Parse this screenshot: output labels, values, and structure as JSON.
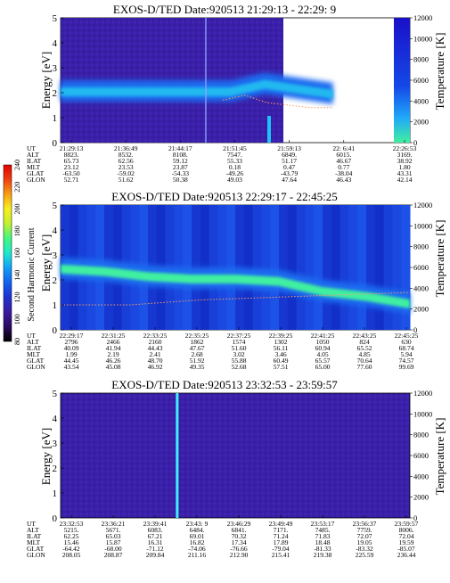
{
  "chart_data": [
    {
      "type": "heatmap",
      "title": "EXOS-D/TED   Date:920513  21:29:13 - 22:29: 9",
      "ylabel": "Energy [eV]",
      "right_label": "Temperature [K]",
      "ylim": [
        0,
        5
      ],
      "yticks": [
        "0",
        "1",
        "2",
        "3",
        "4",
        "5"
      ],
      "right_ticks": [
        "0",
        "2000",
        "4000",
        "6000",
        "8000",
        "10000",
        "12000"
      ],
      "data_end_fraction": 0.78,
      "resume_start_fraction": 0.955,
      "band_energy": [
        2.0,
        2.0,
        2.0,
        2.0,
        2.0,
        2.0,
        2.3,
        2.1,
        1.9
      ],
      "temperature_trace": [
        1.7,
        1.9,
        1.6,
        1.5,
        1.4,
        1.4
      ],
      "table": {
        "row_labels": [
          "UT",
          "ALT",
          "ILAT",
          "MLT",
          "GLAT",
          "GLON"
        ],
        "columns": [
          [
            "21:29:13",
            "8823.",
            "65.73",
            "23.12",
            "-63.50",
            "52.71"
          ],
          [
            "21:36:49",
            "8532.",
            "62.56",
            "23.53",
            "-59.02",
            "51.62"
          ],
          [
            "21:44:17",
            "8108.",
            "59.12",
            "23.87",
            "-54.33",
            "50.38"
          ],
          [
            "21:51:45",
            "7547.",
            "55.33",
            "0.18",
            "-49.26",
            "49.03"
          ],
          [
            "21:59:13",
            "6849.",
            "51.17",
            "0.47",
            "-43.79",
            "47.64"
          ],
          [
            "22: 6:41",
            "6015.",
            "46.67",
            "0.77",
            "-38.04",
            "46.43"
          ],
          [
            "22:26:53",
            "3169.",
            "38.92",
            "1.80",
            "43.31",
            "42.14"
          ]
        ]
      }
    },
    {
      "type": "heatmap",
      "title": "EXOS-D/TED   Date:920513  22:29:17 - 22:45:25",
      "ylabel": "Energy [eV]",
      "right_label": "Temperature [K]",
      "ylim": [
        0,
        5
      ],
      "yticks": [
        "0",
        "1",
        "2",
        "3",
        "4",
        "5"
      ],
      "right_ticks": [
        "0",
        "2000",
        "4000",
        "6000",
        "8000",
        "10000",
        "12000"
      ],
      "band_energy": [
        2.4,
        2.3,
        2.1,
        2.0,
        2.0,
        1.9,
        1.5,
        1.3,
        1.0
      ],
      "temperature_trace": [
        1.0,
        1.0,
        1.2,
        1.3,
        1.4,
        1.5
      ],
      "table": {
        "row_labels": [
          "UT",
          "ALT",
          "ILAT",
          "MLT",
          "GLAT",
          "GLON"
        ],
        "columns": [
          [
            "22:29:17",
            "2796",
            "40.09",
            "1.99",
            "44.45",
            "43.54"
          ],
          [
            "22:31:25",
            "2466",
            "41.94",
            "2.19",
            "46.26",
            "45.08"
          ],
          [
            "22:33:25",
            "2160",
            "44.43",
            "2.41",
            "48.70",
            "46.92"
          ],
          [
            "22:35:25",
            "1862",
            "47.67",
            "2.68",
            "51.92",
            "49.35"
          ],
          [
            "22:37:25",
            "1574",
            "51.60",
            "3.02",
            "55.88",
            "52.68"
          ],
          [
            "22:39:25",
            "1302",
            "56.11",
            "3.46",
            "60.49",
            "57.51"
          ],
          [
            "22:41:25",
            "1050",
            "60.94",
            "4.05",
            "65.57",
            "65.00"
          ],
          [
            "22:43:25",
            "824",
            "65.52",
            "4.85",
            "70.64",
            "77.60"
          ],
          [
            "22:45:25",
            "630",
            "68.74",
            "5.94",
            "74.57",
            "99.69"
          ]
        ]
      }
    },
    {
      "type": "heatmap",
      "title": "EXOS-D/TED   Date:920513  23:32:53 - 23:59:57",
      "ylabel": "Energy [eV]",
      "right_label": "Temperature [K]",
      "ylim": [
        0,
        5
      ],
      "yticks": [
        "0",
        "1",
        "2",
        "3",
        "4",
        "5"
      ],
      "right_ticks": [
        "0",
        "2000",
        "4000",
        "6000",
        "8000",
        "10000",
        "12000"
      ],
      "spike_fraction": 0.33,
      "table": {
        "row_labels": [
          "UT",
          "ALT",
          "ILAT",
          "MLT",
          "GLAT",
          "GLON"
        ],
        "columns": [
          [
            "23:32:53",
            "5215.",
            "62.25",
            "15.46",
            "-64.42",
            "208.05"
          ],
          [
            "23:36:21",
            "5671.",
            "65.03",
            "15.87",
            "-68.00",
            "208.87"
          ],
          [
            "23:39:41",
            "6083.",
            "67.21",
            "16.31",
            "-71.12",
            "209.84"
          ],
          [
            "23:43: 9",
            "6484.",
            "69.01",
            "16.82",
            "-74.06",
            "211.16"
          ],
          [
            "23:46:29",
            "6841.",
            "70.32",
            "17.34",
            "-76.66",
            "212.90"
          ],
          [
            "23:49:49",
            "7171.",
            "71.24",
            "17.89",
            "-79.04",
            "215.41"
          ],
          [
            "23:53:17",
            "7485.",
            "71.83",
            "18.48",
            "-81.33",
            "219.38"
          ],
          [
            "23:56:37",
            "7759.",
            "72.07",
            "19.05",
            "-83.32",
            "225.59"
          ],
          [
            "23:59:57",
            "8006.",
            "72.04",
            "19.59",
            "-85.07",
            "236.44"
          ]
        ]
      }
    }
  ],
  "colorbar": {
    "label": "Second Harmonic Current",
    "ticks": [
      "80",
      "100",
      "120",
      "140",
      "160",
      "180",
      "200",
      "220",
      "240"
    ],
    "stops": [
      "#000000",
      "#2a0a5e",
      "#3a1aa0",
      "#2030d0",
      "#1060f0",
      "#10a0f8",
      "#20e8d0",
      "#40f880",
      "#c0f030",
      "#f8f020",
      "#f8a010",
      "#f04010",
      "#e00000"
    ]
  },
  "colors": {
    "background": "#3a20a8",
    "band": "#1a6cf0",
    "band_core": "#40f0a0",
    "trace": "#ff9a60",
    "spike": "#40f0ff"
  }
}
